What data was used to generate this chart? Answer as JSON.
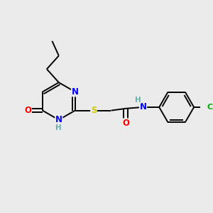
{
  "background_color": "#ebebeb",
  "bond_color": "#000000",
  "atom_colors": {
    "N": "#0000ff",
    "O": "#ff0000",
    "S": "#cccc00",
    "Cl": "#00aa00",
    "H": "#6ab0b0",
    "C": "#000000"
  },
  "font_size": 8.5,
  "lw": 1.4
}
